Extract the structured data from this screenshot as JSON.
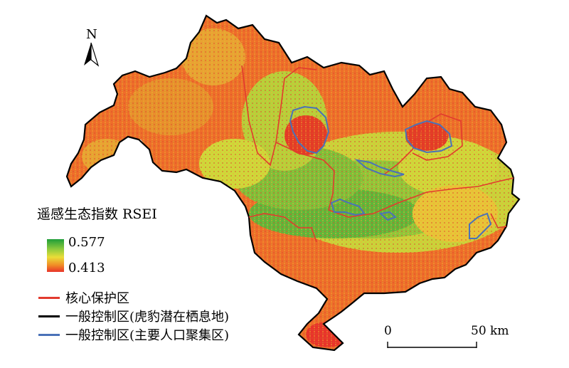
{
  "legend": {
    "title": "遥感生态指数 RSEI",
    "max_label": "0.577",
    "min_label": "0.413",
    "ramp_colors": [
      "#1f9e3a",
      "#7ec73c",
      "#e8e23a",
      "#f08a26",
      "#e8332a"
    ],
    "items": [
      {
        "label": "核心保护区",
        "color": "#e23b2e"
      },
      {
        "label": "一般控制区(虎豹潜在栖息地)",
        "color": "#000000"
      },
      {
        "label": "一般控制区(主要人口聚集区)",
        "color": "#4a72b8"
      }
    ]
  },
  "north_arrow": {
    "label": "N"
  },
  "scale_bar": {
    "start_label": "0",
    "end_label": "50 km"
  }
}
